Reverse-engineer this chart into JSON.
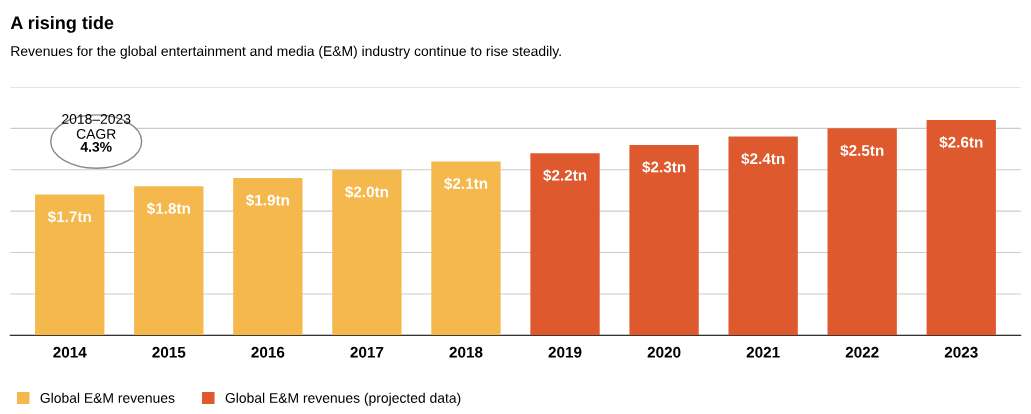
{
  "chart_data": {
    "type": "bar",
    "title": "A rising tide",
    "subtitle": "Revenues for the global entertainment and media (E&M) industry continue to rise steadily.",
    "categories": [
      "2014",
      "2015",
      "2016",
      "2017",
      "2018",
      "2019",
      "2020",
      "2021",
      "2022",
      "2023"
    ],
    "series": [
      {
        "name": "Global E&M revenues",
        "color": "#f5b84c",
        "values": [
          1.7,
          1.8,
          1.9,
          2.0,
          2.1,
          null,
          null,
          null,
          null,
          null
        ],
        "value_labels": [
          "$1.7tn",
          "$1.8tn",
          "$1.9tn",
          "$2.0tn",
          "$2.1tn",
          null,
          null,
          null,
          null,
          null
        ]
      },
      {
        "name": "Global E&M revenues (projected data)",
        "color": "#de5a2e",
        "values": [
          null,
          null,
          null,
          null,
          null,
          2.2,
          2.3,
          2.4,
          2.5,
          2.6
        ],
        "value_labels": [
          null,
          null,
          null,
          null,
          null,
          "$2.2tn",
          "$2.3tn",
          "$2.4tn",
          "$2.5tn",
          "$2.6tn"
        ]
      }
    ],
    "ylim": [
      0,
      3.0
    ],
    "yticks": [
      {
        "value": 0,
        "label": null
      },
      {
        "value": 0.5,
        "label": null
      },
      {
        "value": 1.0,
        "label": null
      },
      {
        "value": 1.5,
        "label": null
      },
      {
        "value": 2.0,
        "label": null
      },
      {
        "value": 2.5,
        "label": null
      },
      {
        "value": 3.0,
        "label": null
      }
    ],
    "tick_labels": "x",
    "grid": "y",
    "legend": "bottom left",
    "annotations": [
      "2018–2023\nCAGR\n4.3%"
    ]
  }
}
